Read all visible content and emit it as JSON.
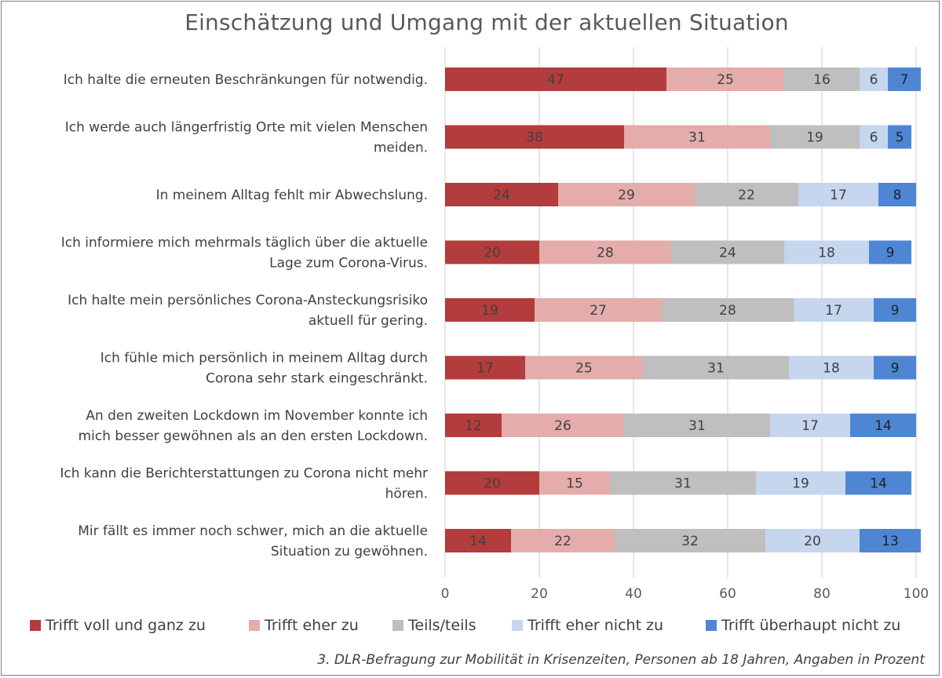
{
  "chart_data": {
    "type": "bar",
    "orientation": "horizontal-stacked",
    "title": "Einschätzung und Umgang mit der aktuellen Situation",
    "categories": [
      [
        "Ich halte die erneuten Beschränkungen für notwendig."
      ],
      [
        "Ich werde auch längerfristig Orte mit vielen Menschen",
        "meiden."
      ],
      [
        "In meinem Alltag fehlt mir Abwechslung."
      ],
      [
        "Ich informiere mich mehrmals täglich über die aktuelle",
        "Lage zum Corona-Virus."
      ],
      [
        "Ich halte mein persönliches Corona-Ansteckungsrisiko",
        "aktuell für gering."
      ],
      [
        "Ich fühle mich persönlich in meinem Alltag durch",
        "Corona sehr stark eingeschränkt."
      ],
      [
        "An den zweiten Lockdown im November konnte ich",
        "mich besser gewöhnen als an den ersten Lockdown."
      ],
      [
        "Ich kann die Berichterstattungen zu Corona nicht mehr",
        "hören."
      ],
      [
        "Mir fällt es immer noch schwer, mich an die aktuelle",
        "Situation zu gewöhnen."
      ]
    ],
    "series": [
      {
        "name": "Trifft voll und ganz zu",
        "color": "#b33c3c",
        "label_color": "#404040",
        "values": [
          47,
          38,
          24,
          20,
          19,
          17,
          12,
          20,
          14
        ]
      },
      {
        "name": "Trifft eher zu",
        "color": "#e5acac",
        "label_color": "#404040",
        "values": [
          25,
          31,
          29,
          28,
          27,
          25,
          26,
          15,
          22
        ]
      },
      {
        "name": "Teils/teils",
        "color": "#bfbfbf",
        "label_color": "#404040",
        "values": [
          16,
          19,
          22,
          24,
          28,
          31,
          31,
          31,
          32
        ]
      },
      {
        "name": "Trifft eher nicht zu",
        "color": "#c5d6ee",
        "label_color": "#404040",
        "values": [
          6,
          6,
          17,
          18,
          17,
          18,
          17,
          19,
          20
        ]
      },
      {
        "name": "Trifft überhaupt nicht zu",
        "color": "#4f86d4",
        "label_color": "#222222",
        "values": [
          7,
          5,
          8,
          9,
          9,
          9,
          14,
          14,
          13
        ]
      }
    ],
    "xlim": [
      0,
      100
    ],
    "xticks": [
      0,
      20,
      40,
      60,
      80,
      100
    ],
    "grid": "vertical",
    "legend": "bottom",
    "source_note": "3. DLR-Befragung zur Mobilität in Krisenzeiten, Personen ab 18 Jahren, Angaben in Prozent"
  }
}
